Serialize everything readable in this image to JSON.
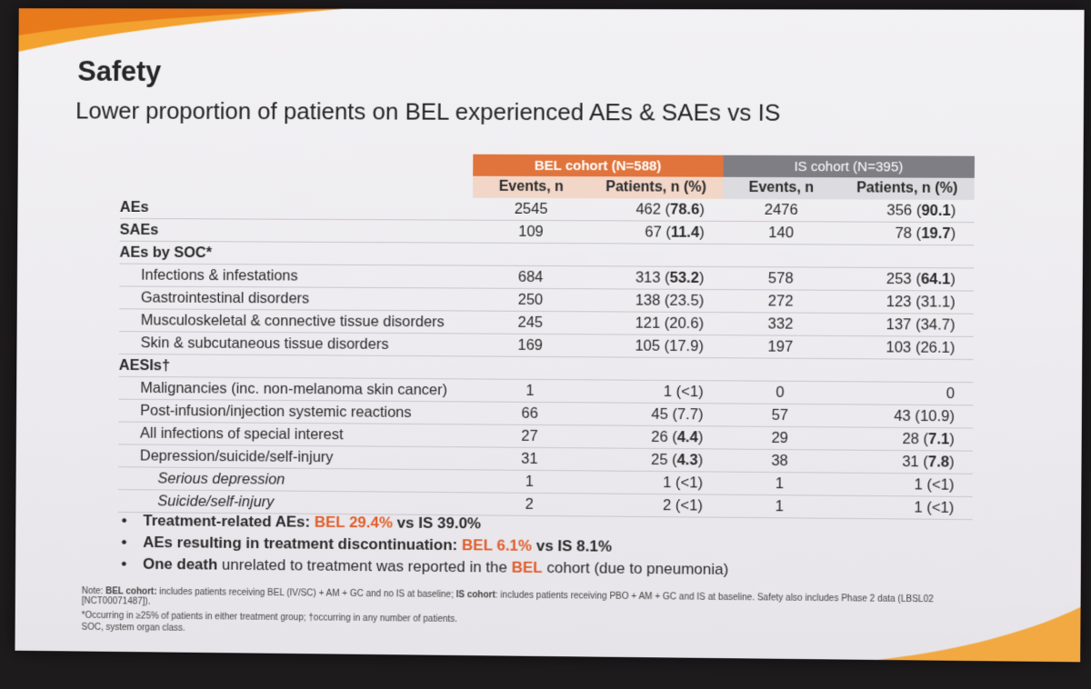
{
  "slide": {
    "title": "Safety",
    "subtitle": "Lower proportion of patients on BEL experienced AEs & SAEs vs IS"
  },
  "table": {
    "bel_header": "BEL cohort (N=588)",
    "is_header": "IS cohort (N=395)",
    "sub_events": "Events, n",
    "sub_patients": "Patients, n (%)",
    "rows": [
      {
        "label": "AEs",
        "style": "sec",
        "bel_events": "2545",
        "bel_pat": "462 (",
        "bel_pct": "78.6",
        "bel_bold": true,
        "is_events": "2476",
        "is_pat": "356 (",
        "is_pct": "90.1",
        "is_bold": true
      },
      {
        "label": "SAEs",
        "style": "sec",
        "bel_events": "109",
        "bel_pat": "67 (",
        "bel_pct": "11.4",
        "bel_bold": true,
        "is_events": "140",
        "is_pat": "78 (",
        "is_pct": "19.7",
        "is_bold": true
      },
      {
        "label": "AEs by SOC*",
        "style": "sec",
        "bel_events": "",
        "bel_pat": "",
        "bel_pct": "",
        "bel_bold": false,
        "is_events": "",
        "is_pat": "",
        "is_pct": "",
        "is_bold": false
      },
      {
        "label": "Infections & infestations",
        "style": "ind1",
        "bel_events": "684",
        "bel_pat": "313 (",
        "bel_pct": "53.2",
        "bel_bold": true,
        "is_events": "578",
        "is_pat": "253 (",
        "is_pct": "64.1",
        "is_bold": true
      },
      {
        "label": "Gastrointestinal disorders",
        "style": "ind1",
        "bel_events": "250",
        "bel_pat": "138 (",
        "bel_pct": "23.5",
        "bel_bold": false,
        "is_events": "272",
        "is_pat": "123 (",
        "is_pct": "31.1",
        "is_bold": false
      },
      {
        "label": "Musculoskeletal & connective tissue disorders",
        "style": "ind1",
        "bel_events": "245",
        "bel_pat": "121 (",
        "bel_pct": "20.6",
        "bel_bold": false,
        "is_events": "332",
        "is_pat": "137 (",
        "is_pct": "34.7",
        "is_bold": false
      },
      {
        "label": "Skin & subcutaneous tissue disorders",
        "style": "ind1",
        "bel_events": "169",
        "bel_pat": "105 (",
        "bel_pct": "17.9",
        "bel_bold": false,
        "is_events": "197",
        "is_pat": "103 (",
        "is_pct": "26.1",
        "is_bold": false
      },
      {
        "label": "AESIs†",
        "style": "sec",
        "bel_events": "",
        "bel_pat": "",
        "bel_pct": "",
        "bel_bold": false,
        "is_events": "",
        "is_pat": "",
        "is_pct": "",
        "is_bold": false
      },
      {
        "label": "Malignancies (inc. non-melanoma skin cancer)",
        "style": "ind1",
        "bel_events": "1",
        "bel_pat": "1 (",
        "bel_pct": "<1",
        "bel_bold": false,
        "is_events": "0",
        "is_pat": "0",
        "is_pct": "",
        "is_bold": false
      },
      {
        "label": "Post-infusion/injection systemic reactions",
        "style": "ind1",
        "bel_events": "66",
        "bel_pat": "45 (",
        "bel_pct": "7.7",
        "bel_bold": false,
        "is_events": "57",
        "is_pat": "43 (",
        "is_pct": "10.9",
        "is_bold": false
      },
      {
        "label": "All infections of special interest",
        "style": "ind1",
        "bel_events": "27",
        "bel_pat": "26 (",
        "bel_pct": "4.4",
        "bel_bold": true,
        "is_events": "29",
        "is_pat": "28 (",
        "is_pct": "7.1",
        "is_bold": true
      },
      {
        "label": "Depression/suicide/self-injury",
        "style": "ind1",
        "bel_events": "31",
        "bel_pat": "25 (",
        "bel_pct": "4.3",
        "bel_bold": true,
        "is_events": "38",
        "is_pat": "31 (",
        "is_pct": "7.8",
        "is_bold": true
      },
      {
        "label": "Serious depression",
        "style": "ind2",
        "bel_events": "1",
        "bel_pat": "1 (",
        "bel_pct": "<1",
        "bel_bold": false,
        "is_events": "1",
        "is_pat": "1 (",
        "is_pct": "<1",
        "is_bold": false
      },
      {
        "label": "Suicide/self-injury",
        "style": "ind2",
        "bel_events": "2",
        "bel_pat": "2 (",
        "bel_pct": "<1",
        "bel_bold": false,
        "is_events": "1",
        "is_pat": "1 (",
        "is_pct": "<1",
        "is_bold": false
      }
    ]
  },
  "bullets": {
    "b1_bold": "Treatment-related AEs:",
    "b1_bel": "BEL 29.4%",
    "b1_rest": "vs IS 39.0%",
    "b2_bold": "AEs resulting in treatment discontinuation:",
    "b2_bel": "BEL 6.1%",
    "b2_rest": "vs IS 8.1%",
    "b3_bold": "One death",
    "b3_mid": "unrelated to treatment was reported in the",
    "b3_bel": "BEL",
    "b3_rest": "cohort (due to pneumonia)"
  },
  "note": {
    "prefix": "Note:",
    "bel_label": "BEL cohort:",
    "bel_text": "includes patients receiving BEL (IV/SC) + AM + GC and no IS at baseline;",
    "is_label": "IS cohort",
    "is_text": ": includes patients receiving PBO + AM + GC and IS at baseline. Safety also includes Phase 2 data (LBSL02 [NCT00071487])."
  },
  "footnotes": {
    "line1": "*Occurring in ≥25% of patients in either treatment group; †occurring in any number of patients.",
    "line2": "SOC, system organ class."
  }
}
